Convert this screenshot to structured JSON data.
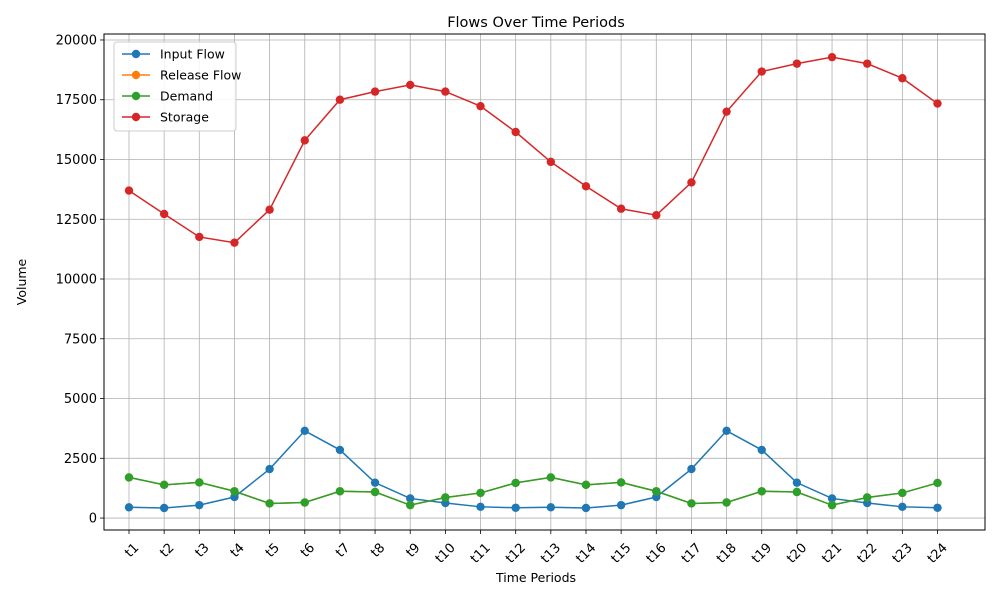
{
  "chart_data": {
    "type": "line",
    "title": "Flows Over Time Periods",
    "xlabel": "Time Periods",
    "ylabel": "Volume",
    "categories": [
      "t1",
      "t2",
      "t3",
      "t4",
      "t5",
      "t6",
      "t7",
      "t8",
      "t9",
      "t10",
      "t11",
      "t12",
      "t13",
      "t14",
      "t15",
      "t16",
      "t17",
      "t18",
      "t19",
      "t20",
      "t21",
      "t22",
      "t23",
      "t24"
    ],
    "ylim": [
      -500,
      20250
    ],
    "yticks": [
      0,
      2500,
      5000,
      7500,
      10000,
      12500,
      15000,
      17500,
      20000
    ],
    "grid": true,
    "legend_position": "top-left",
    "series": [
      {
        "name": "Input Flow",
        "color": "#1f77b4",
        "values": [
          450,
          420,
          540,
          880,
          2050,
          3650,
          2850,
          1480,
          820,
          630,
          470,
          430,
          450,
          420,
          540,
          880,
          2050,
          3650,
          2850,
          1480,
          820,
          630,
          470,
          430
        ]
      },
      {
        "name": "Release Flow",
        "color": "#ff7f0e",
        "values": [
          1700,
          1390,
          1490,
          1120,
          610,
          650,
          1120,
          1090,
          540,
          860,
          1050,
          1470,
          1700,
          1390,
          1490,
          1120,
          610,
          650,
          1120,
          1090,
          540,
          860,
          1050,
          1470
        ]
      },
      {
        "name": "Demand",
        "color": "#2ca02c",
        "values": [
          1700,
          1390,
          1490,
          1120,
          610,
          650,
          1120,
          1090,
          540,
          860,
          1050,
          1470,
          1700,
          1390,
          1490,
          1120,
          610,
          650,
          1120,
          1090,
          540,
          860,
          1050,
          1470
        ]
      },
      {
        "name": "Storage",
        "color": "#d62728",
        "values": [
          13700,
          12720,
          11760,
          11520,
          12900,
          15800,
          17500,
          17840,
          18120,
          17840,
          17230,
          16150,
          14900,
          13880,
          12940,
          12670,
          14040,
          17000,
          18680,
          19010,
          19280,
          19010,
          18400,
          17340
        ]
      }
    ]
  }
}
